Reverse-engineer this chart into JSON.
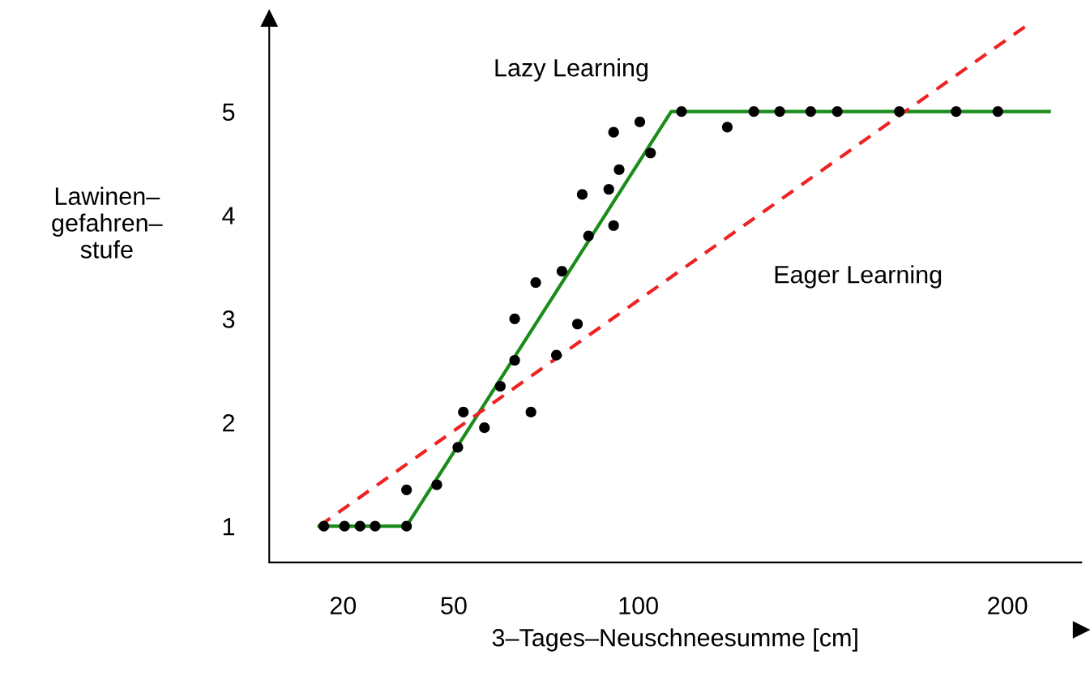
{
  "chart_data": {
    "type": "scatter",
    "xlabel": "3–Tages–Neuschneesumme [cm]",
    "ylabel": "Lawinen–\ngefahren–\nstufe",
    "xlim": [
      0,
      220
    ],
    "ylim": [
      0.65,
      5.9
    ],
    "xticks": [
      20,
      50,
      100,
      200
    ],
    "yticks": [
      1,
      2,
      3,
      4,
      5
    ],
    "grid": false,
    "series": [
      {
        "marker": "circle",
        "color": "#000000",
        "x": [
          14.8,
          20.4,
          24.6,
          28.7,
          37.2,
          37.2,
          45.4,
          51.1,
          52.6,
          58.3,
          62.6,
          66.5,
          66.5,
          70.9,
          72.2,
          77.8,
          79.3,
          83.5,
          84.8,
          86.5,
          92,
          93.3,
          93.3,
          94.8,
          100.4,
          103.3,
          111.7,
          124.1,
          131.3,
          138.3,
          146.7,
          153.9,
          170.7,
          186.1,
          197.4
        ],
        "values": [
          1,
          1,
          1,
          1,
          1,
          1.35,
          1.4,
          1.76,
          2.1,
          1.95,
          2.35,
          2.6,
          3.0,
          2.1,
          3.35,
          2.65,
          3.46,
          2.95,
          4.2,
          3.8,
          4.25,
          3.9,
          4.8,
          4.44,
          4.9,
          4.6,
          5,
          4.85,
          5,
          5,
          5,
          5,
          5,
          5,
          5
        ]
      },
      {
        "type": "line",
        "color": "#1a8c1a",
        "line_style": "solid",
        "marker": "none",
        "x": [
          13.5,
          37.2,
          108.9,
          211.3
        ],
        "values": [
          1,
          1,
          5,
          5
        ]
      },
      {
        "type": "line",
        "color": "#ee2222",
        "line_style": "dashed",
        "marker": "none",
        "x": [
          13.5,
          204.8
        ],
        "values": [
          1,
          5.82
        ]
      }
    ],
    "annotations": [
      "Lazy Learning",
      "Eager Learning"
    ]
  }
}
